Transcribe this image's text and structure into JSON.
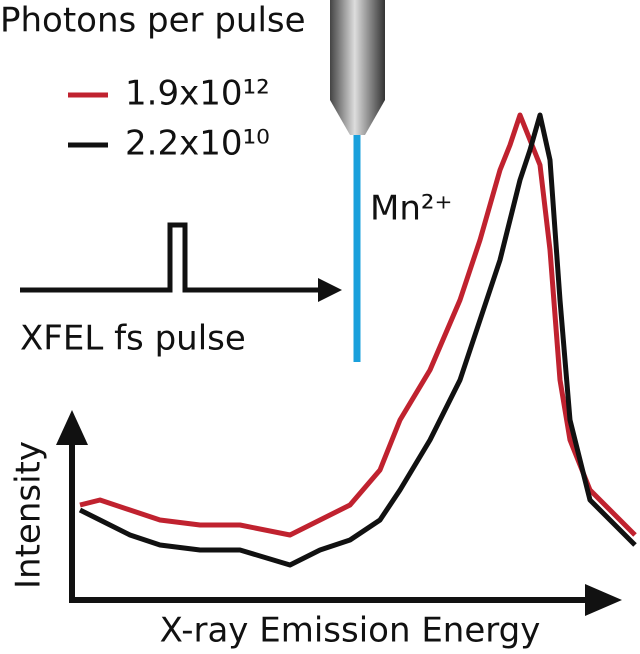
{
  "chart_data": {
    "type": "line",
    "legend_title": "Photons per pulse",
    "annotations": [
      "Mn²⁺",
      "XFEL fs pulse"
    ],
    "xlabel": "X-ray Emission Energy",
    "ylabel": "Intensity",
    "x": [
      0,
      20,
      50,
      80,
      120,
      160,
      210,
      240,
      270,
      300,
      320,
      350,
      380,
      400,
      420,
      430,
      440,
      450,
      460,
      470,
      480,
      490,
      510,
      530,
      555
    ],
    "xlim": [
      0,
      555
    ],
    "ylim": [
      0,
      490
    ],
    "series": [
      {
        "name": "1.9x10¹²",
        "color": "#c0222f",
        "values": [
          95,
          100,
          90,
          80,
          75,
          75,
          65,
          80,
          95,
          130,
          180,
          230,
          300,
          360,
          430,
          455,
          485,
          460,
          435,
          350,
          220,
          160,
          110,
          90,
          65
        ]
      },
      {
        "name": "2.2x10¹⁰",
        "color": "#111111",
        "values": [
          90,
          80,
          65,
          55,
          50,
          50,
          35,
          50,
          60,
          80,
          110,
          160,
          220,
          280,
          340,
          380,
          420,
          450,
          485,
          440,
          300,
          180,
          100,
          80,
          55
        ]
      }
    ]
  }
}
